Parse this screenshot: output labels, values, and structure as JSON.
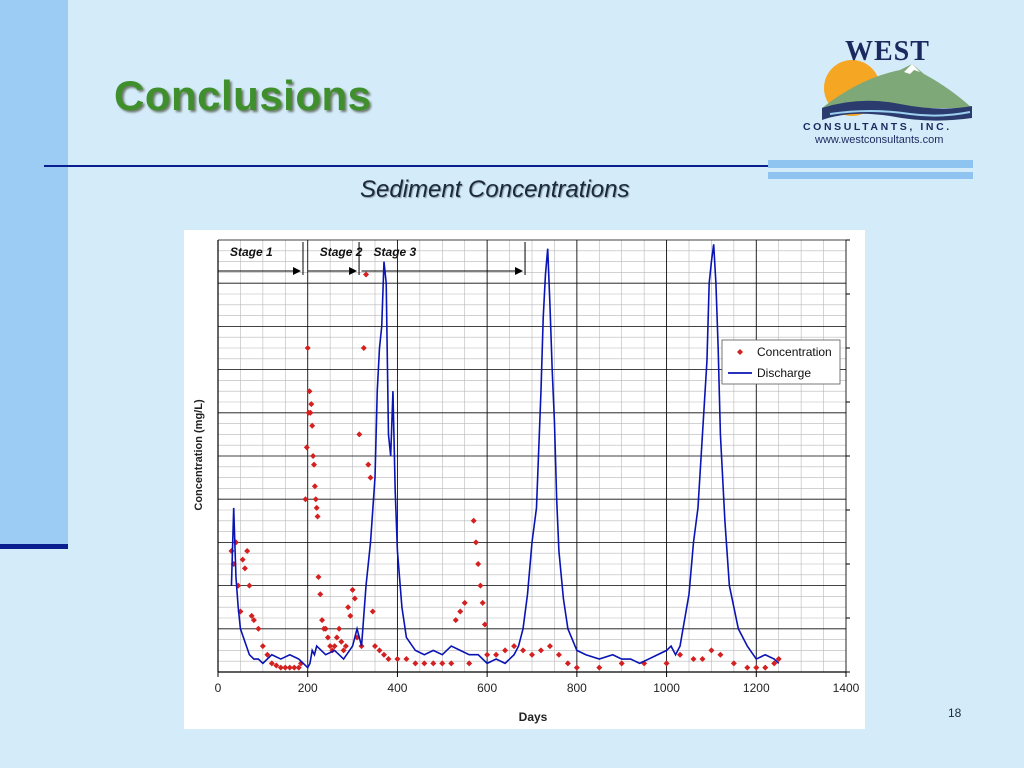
{
  "slide": {
    "title": "Conclusions",
    "subtitle": "Sediment Concentrations",
    "page_number": "18",
    "logo": {
      "name": "WEST",
      "subtitle": "CONSULTANTS, INC.",
      "url": "www.westconsultants.com"
    },
    "colors": {
      "background": "#d4ecfa",
      "accent_bar": "#9cccf4",
      "rule": "#0a1f8f",
      "title": "#3f8f2d"
    }
  },
  "chart_data": {
    "type": "line",
    "title": "",
    "xlabel": "Days",
    "ylabel": "Concentration (mg/L)",
    "xlim": [
      0,
      1400
    ],
    "x_ticks": [
      0,
      200,
      400,
      600,
      800,
      1000,
      1200,
      1400
    ],
    "grid": true,
    "legend_position": "top-right",
    "stages": [
      {
        "label": "Stage 1",
        "start": 0,
        "end": 185
      },
      {
        "label": "Stage 2",
        "start": 200,
        "end": 310
      },
      {
        "label": "Stage 3",
        "start": 320,
        "end": 680
      }
    ],
    "series": [
      {
        "name": "Concentration",
        "kind": "scatter",
        "color": "#d42020",
        "relative": true,
        "x": [
          30,
          35,
          40,
          45,
          50,
          55,
          60,
          65,
          70,
          75,
          80,
          90,
          100,
          110,
          120,
          130,
          140,
          150,
          160,
          170,
          180,
          185,
          195,
          198,
          200,
          202,
          204,
          206,
          208,
          210,
          212,
          214,
          216,
          218,
          220,
          222,
          224,
          228,
          232,
          236,
          240,
          245,
          250,
          255,
          260,
          265,
          270,
          275,
          280,
          285,
          290,
          295,
          300,
          305,
          310,
          315,
          320,
          325,
          330,
          335,
          340,
          345,
          350,
          360,
          370,
          380,
          400,
          420,
          440,
          460,
          480,
          500,
          520,
          530,
          540,
          550,
          560,
          570,
          575,
          580,
          585,
          590,
          595,
          600,
          620,
          640,
          660,
          680,
          700,
          720,
          740,
          760,
          780,
          800,
          850,
          900,
          950,
          1000,
          1030,
          1060,
          1080,
          1100,
          1120,
          1150,
          1180,
          1200,
          1220,
          1240,
          1250
        ],
        "y": [
          0.28,
          0.25,
          0.3,
          0.2,
          0.14,
          0.26,
          0.24,
          0.28,
          0.2,
          0.13,
          0.12,
          0.1,
          0.06,
          0.04,
          0.02,
          0.015,
          0.01,
          0.01,
          0.01,
          0.01,
          0.01,
          0.02,
          0.4,
          0.52,
          0.75,
          0.6,
          0.65,
          0.6,
          0.62,
          0.57,
          0.5,
          0.48,
          0.43,
          0.4,
          0.38,
          0.36,
          0.22,
          0.18,
          0.12,
          0.1,
          0.1,
          0.08,
          0.06,
          0.05,
          0.06,
          0.08,
          0.1,
          0.07,
          0.05,
          0.06,
          0.15,
          0.13,
          0.19,
          0.17,
          0.08,
          0.55,
          0.06,
          0.75,
          0.92,
          0.48,
          0.45,
          0.14,
          0.06,
          0.05,
          0.04,
          0.03,
          0.03,
          0.03,
          0.02,
          0.02,
          0.02,
          0.02,
          0.02,
          0.12,
          0.14,
          0.16,
          0.02,
          0.35,
          0.3,
          0.25,
          0.2,
          0.16,
          0.11,
          0.04,
          0.04,
          0.05,
          0.06,
          0.05,
          0.04,
          0.05,
          0.06,
          0.04,
          0.02,
          0.01,
          0.01,
          0.02,
          0.02,
          0.02,
          0.04,
          0.03,
          0.03,
          0.05,
          0.04,
          0.02,
          0.01,
          0.01,
          0.01,
          0.02,
          0.03
        ]
      },
      {
        "name": "Discharge",
        "kind": "line",
        "color": "#0a14b4",
        "relative": true,
        "x": [
          30,
          35,
          40,
          45,
          50,
          60,
          70,
          80,
          90,
          100,
          120,
          140,
          160,
          180,
          190,
          200,
          205,
          210,
          215,
          220,
          240,
          260,
          280,
          300,
          310,
          320,
          330,
          340,
          350,
          355,
          360,
          365,
          370,
          375,
          380,
          385,
          390,
          395,
          400,
          410,
          420,
          440,
          460,
          480,
          500,
          520,
          540,
          560,
          580,
          600,
          620,
          640,
          660,
          670,
          680,
          690,
          700,
          710,
          720,
          725,
          730,
          735,
          740,
          745,
          750,
          755,
          760,
          770,
          780,
          800,
          820,
          850,
          880,
          900,
          920,
          940,
          960,
          980,
          1000,
          1010,
          1020,
          1030,
          1040,
          1050,
          1060,
          1070,
          1080,
          1090,
          1095,
          1100,
          1105,
          1110,
          1115,
          1120,
          1130,
          1140,
          1160,
          1180,
          1200,
          1220,
          1240,
          1250
        ],
        "y": [
          0.2,
          0.38,
          0.22,
          0.15,
          0.1,
          0.07,
          0.04,
          0.03,
          0.03,
          0.02,
          0.04,
          0.03,
          0.04,
          0.03,
          0.02,
          0.01,
          0.02,
          0.05,
          0.04,
          0.06,
          0.04,
          0.05,
          0.03,
          0.06,
          0.1,
          0.06,
          0.2,
          0.3,
          0.45,
          0.65,
          0.75,
          0.8,
          0.95,
          0.9,
          0.55,
          0.5,
          0.65,
          0.42,
          0.28,
          0.15,
          0.08,
          0.05,
          0.04,
          0.05,
          0.04,
          0.06,
          0.05,
          0.04,
          0.04,
          0.02,
          0.03,
          0.02,
          0.04,
          0.06,
          0.1,
          0.18,
          0.3,
          0.38,
          0.65,
          0.82,
          0.92,
          0.98,
          0.85,
          0.7,
          0.58,
          0.4,
          0.28,
          0.17,
          0.1,
          0.05,
          0.04,
          0.03,
          0.04,
          0.03,
          0.03,
          0.02,
          0.03,
          0.04,
          0.05,
          0.06,
          0.04,
          0.06,
          0.12,
          0.18,
          0.3,
          0.38,
          0.55,
          0.72,
          0.9,
          0.95,
          0.99,
          0.9,
          0.75,
          0.55,
          0.35,
          0.2,
          0.1,
          0.06,
          0.03,
          0.04,
          0.03,
          0.02
        ]
      }
    ]
  }
}
